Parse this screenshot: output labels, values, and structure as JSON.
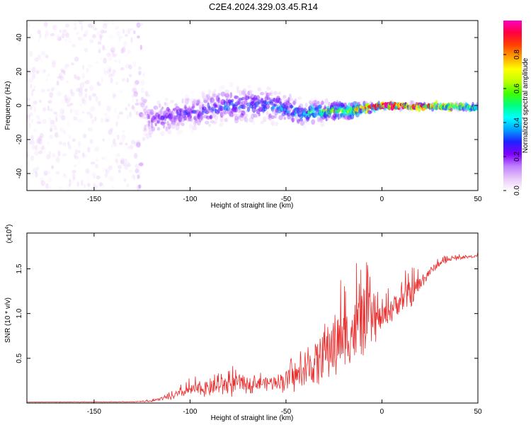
{
  "title": "C2E4.2024.329.03.45.R14",
  "chart_data": [
    {
      "type": "heatmap",
      "xlabel": "Height of straight line (km)",
      "ylabel": "Frequency (Hz)",
      "xlim": [
        -185,
        50
      ],
      "ylim": [
        -50,
        50
      ],
      "xticks": [
        -150,
        -100,
        -50,
        0,
        50
      ],
      "yticks": [
        -40,
        -20,
        0,
        20,
        40
      ],
      "colorbar": {
        "label": "Normalized spectral amplitude",
        "range": [
          0,
          1
        ],
        "ticks": [
          "0.0",
          "0.2",
          "0.4",
          "0.6",
          "0.8"
        ],
        "colormap": [
          "#ffffff",
          "#e8c8f8",
          "#c080ff",
          "#8000ff",
          "#2020ff",
          "#00a0ff",
          "#00ffff",
          "#00ff80",
          "#40ff00",
          "#c0ff00",
          "#ffff00",
          "#ffa000",
          "#ff4000",
          "#ff0040",
          "#ff00c0"
        ]
      },
      "profile": {
        "description_points_x": [
          -185,
          -130,
          -120,
          -100,
          -80,
          -60,
          -40,
          -20,
          -10,
          0,
          50
        ],
        "center_frequency": [
          0,
          0,
          -8,
          -4,
          0,
          0,
          -4,
          -3,
          -2,
          0,
          -1
        ],
        "spread_half_width": [
          50,
          48,
          12,
          11,
          12,
          11,
          8,
          6,
          4,
          2,
          2
        ],
        "peak_amplitude": [
          0.05,
          0.05,
          0.2,
          0.25,
          0.3,
          0.3,
          0.45,
          0.6,
          0.8,
          1.0,
          0.55
        ]
      }
    },
    {
      "type": "line",
      "xlabel": "Height of straight line (km)",
      "ylabel": "SNR (10 * v/v)",
      "yscale_label": "(x10",
      "yscale_exp": "4",
      "yscale_close": ")",
      "xlim": [
        -185,
        50
      ],
      "ylim": [
        0,
        19000
      ],
      "xticks": [
        -150,
        -100,
        -50,
        0,
        50
      ],
      "yticks": [
        5000,
        10000,
        15000
      ],
      "ytick_labels": [
        "0.5",
        "1.0",
        "1.5"
      ],
      "color": "#e83030",
      "series": [
        {
          "x": [
            -185,
            -150,
            -130,
            -120,
            -110,
            -100,
            -90,
            -80,
            -70,
            -60,
            -50,
            -40,
            -35,
            -30,
            -25,
            -20,
            -15,
            -12,
            -10,
            -8,
            -5,
            0,
            5,
            10,
            15,
            20,
            25,
            30,
            35,
            40,
            45,
            50
          ],
          "baseline": [
            100,
            100,
            120,
            200,
            600,
            1200,
            1400,
            1700,
            1900,
            2000,
            2200,
            2800,
            3500,
            4500,
            5500,
            6000,
            6500,
            7000,
            7500,
            8000,
            8500,
            9000,
            10000,
            11000,
            11500,
            13000,
            14500,
            15500,
            16000,
            16200,
            16300,
            16400
          ],
          "spike_amp": [
            50,
            60,
            80,
            200,
            600,
            1500,
            1800,
            2500,
            1800,
            1500,
            2500,
            3500,
            5500,
            6500,
            8000,
            7500,
            8500,
            9000,
            10500,
            7000,
            5000,
            3000,
            3000,
            3500,
            3500,
            2000,
            1200,
            800,
            500,
            400,
            300,
            250
          ]
        }
      ]
    }
  ]
}
